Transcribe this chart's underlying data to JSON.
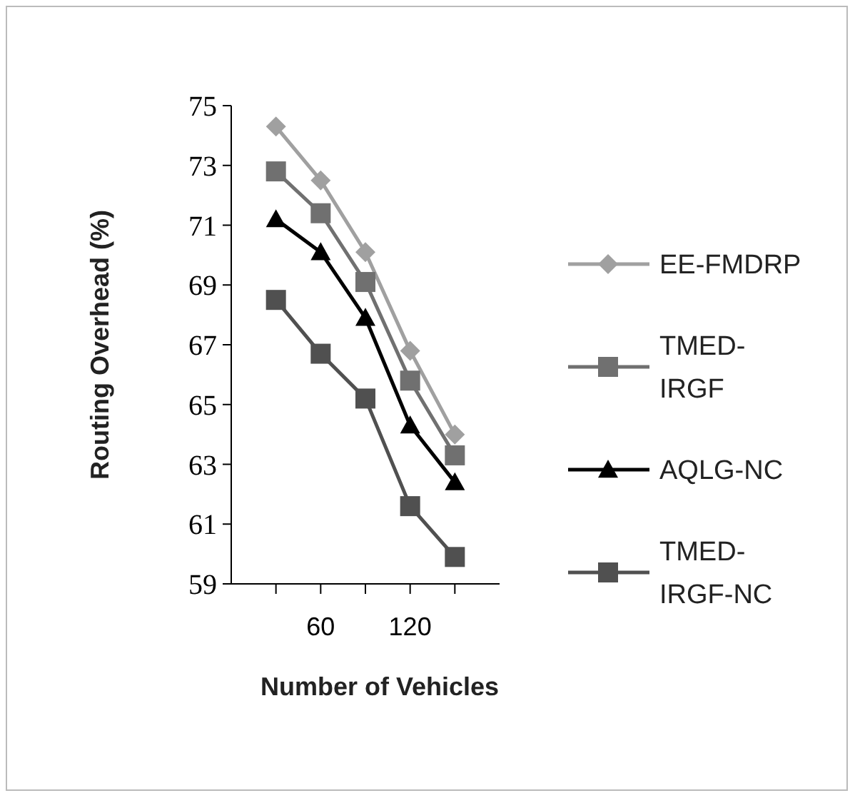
{
  "chart_data": {
    "type": "line",
    "xlabel": "Number of Vehicles",
    "ylabel": "Routing Overhead (%)",
    "categories": [
      null,
      "60",
      null,
      "120",
      null
    ],
    "ylim": [
      59,
      75
    ],
    "yticks": [
      59,
      61,
      63,
      65,
      67,
      69,
      71,
      73,
      75
    ],
    "grid": false,
    "legend": "right",
    "series": [
      {
        "name": "EE-FMDRP",
        "color": "#a0a0a0",
        "marker": "diamond",
        "values": [
          74.3,
          72.5,
          70.1,
          66.8,
          64.0
        ]
      },
      {
        "name": "TMED-IRGF",
        "color": "#707070",
        "marker": "square",
        "values": [
          72.8,
          71.4,
          69.1,
          65.8,
          63.3
        ]
      },
      {
        "name": "AQLG-NC",
        "color": "#000000",
        "marker": "triangle",
        "values": [
          71.2,
          70.1,
          67.9,
          64.3,
          62.4
        ]
      },
      {
        "name": "TMED-IRGF-NC",
        "color": "#505050",
        "marker": "square",
        "values": [
          68.5,
          66.7,
          65.2,
          61.6,
          59.9
        ]
      }
    ]
  }
}
